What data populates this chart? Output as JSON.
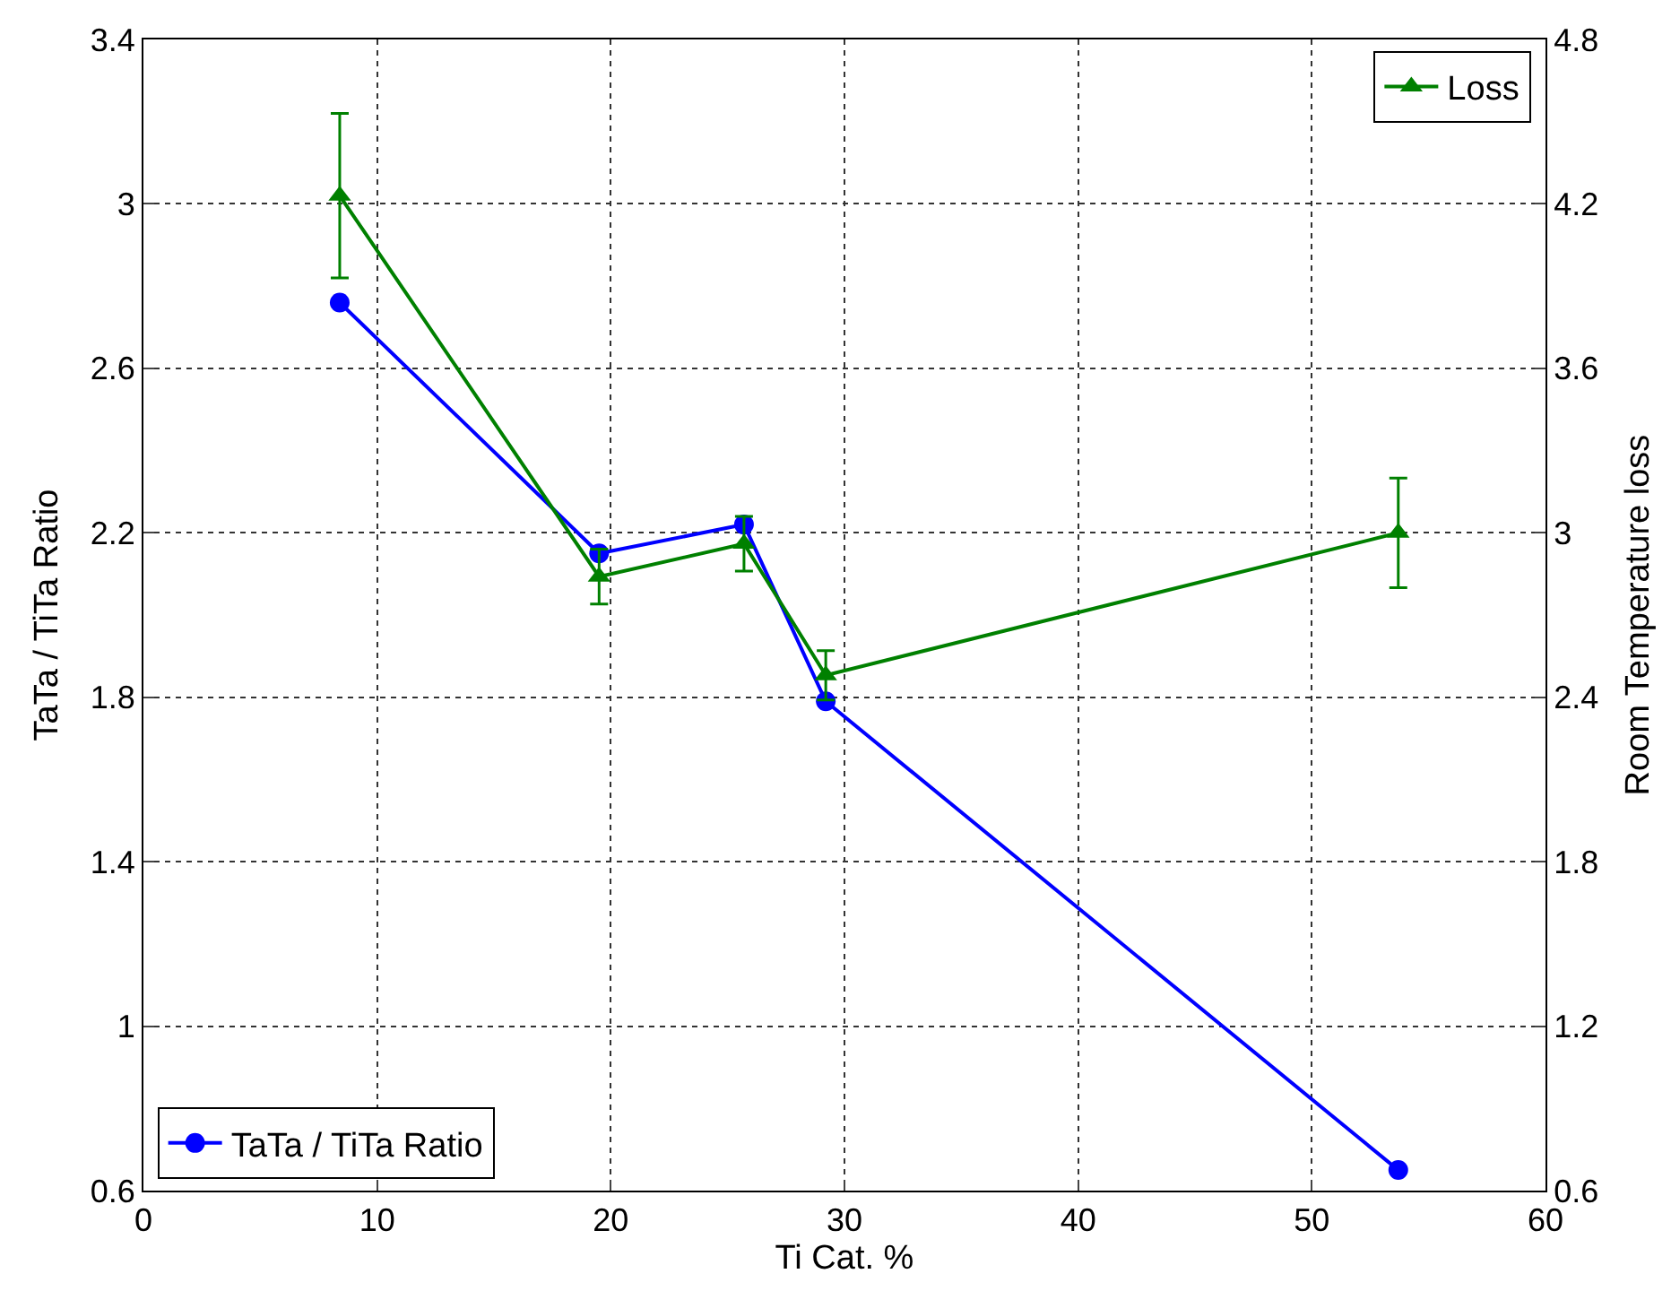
{
  "chart_data": {
    "type": "line",
    "xlabel": "Ti Cat. %",
    "ylabel": "TaTa / TiTa Ratio",
    "y2label": "Room Temperature loss",
    "x": [
      8.4,
      19.5,
      25.7,
      29.2,
      53.7
    ],
    "series": [
      {
        "name": "TaTa / TiTa Ratio",
        "color": "#0000ff",
        "marker": "circle",
        "values": [
          2.76,
          2.15,
          2.22,
          1.79,
          0.65
        ]
      },
      {
        "name": "Loss",
        "color": "#008000",
        "marker": "triangle",
        "axis": "y2",
        "values": [
          4.23,
          2.84,
          2.96,
          2.48,
          3.0
        ],
        "errors": [
          0.3,
          0.1,
          0.1,
          0.09,
          0.2
        ]
      }
    ],
    "xlim": [
      0,
      60
    ],
    "xticks": [
      0,
      10,
      20,
      30,
      40,
      50,
      60
    ],
    "ylim": [
      0.6,
      3.4
    ],
    "yticks": [
      0.6,
      1,
      1.4,
      1.8,
      2.2,
      2.6,
      3,
      3.4
    ],
    "y2lim": [
      0.6,
      4.8
    ],
    "y2ticks": [
      0.6,
      1.2,
      1.8,
      2.4,
      3,
      3.6,
      4.2,
      4.8
    ],
    "grid": true,
    "legend": [
      "bottom left",
      "top right"
    ]
  }
}
